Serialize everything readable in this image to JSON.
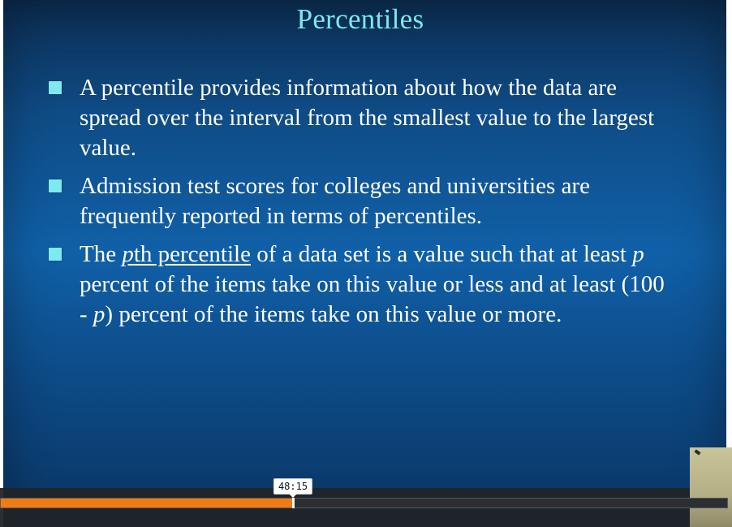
{
  "slide": {
    "title": "Percentiles",
    "colors": {
      "title": "#7ee8ec",
      "bullet_marker": "#7fe9f0",
      "text": "#ffffff",
      "background": "#1060a8"
    },
    "bullets": [
      {
        "text": "A percentile provides information about how the data are spread over the interval from the smallest value to the largest value."
      },
      {
        "text": "Admission test scores for colleges and universities are frequently reported in terms of percentiles."
      },
      {
        "pre": "The ",
        "term_italic": "p",
        "term_rest": "th percentile",
        "mid1": " of a data set is a value such that at least ",
        "p1": "p",
        "mid2": " percent of the items take on this value or less and at least (100 - ",
        "p2": "p",
        "post": ") percent of the items take on this value or more."
      }
    ]
  },
  "player": {
    "hover_time": "48:15",
    "progress_fraction": 0.403,
    "colors": {
      "progress_fill": "#f07b14",
      "track": "#2b2f33"
    }
  }
}
